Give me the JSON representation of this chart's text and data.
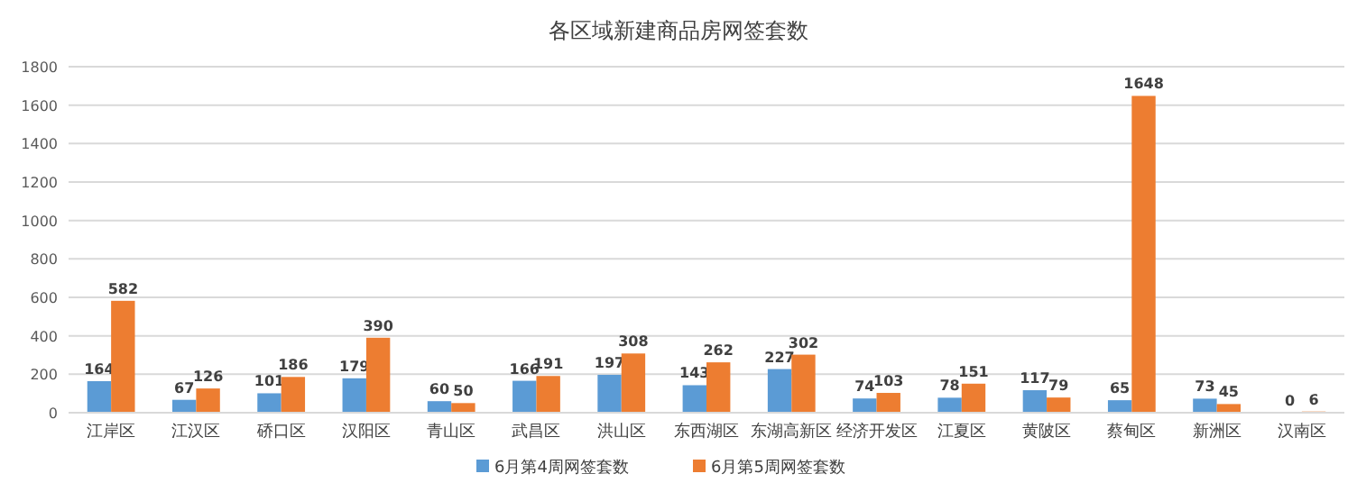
{
  "chart_data": {
    "type": "bar",
    "title": "各区域新建商品房网签套数",
    "categories": [
      "江岸区",
      "江汉区",
      "硚口区",
      "汉阳区",
      "青山区",
      "武昌区",
      "洪山区",
      "东西湖区",
      "东湖高新区",
      "经济开发区",
      "江夏区",
      "黄陂区",
      "蔡甸区",
      "新洲区",
      "汉南区"
    ],
    "series": [
      {
        "name": "6月第4周网签套数",
        "color": "#5b9bd5",
        "values": [
          164,
          67,
          101,
          179,
          60,
          166,
          197,
          143,
          227,
          74,
          78,
          117,
          65,
          73,
          0
        ]
      },
      {
        "name": "6月第5周网签套数",
        "color": "#ed7d31",
        "values": [
          582,
          126,
          186,
          390,
          50,
          191,
          308,
          262,
          302,
          103,
          151,
          79,
          1648,
          45,
          6
        ]
      }
    ],
    "ylim": [
      0,
      1800
    ],
    "yticks": [
      0,
      200,
      400,
      600,
      800,
      1000,
      1200,
      1400,
      1600,
      1800
    ],
    "grid": "y",
    "legend": "bottom",
    "data_labels": true
  }
}
